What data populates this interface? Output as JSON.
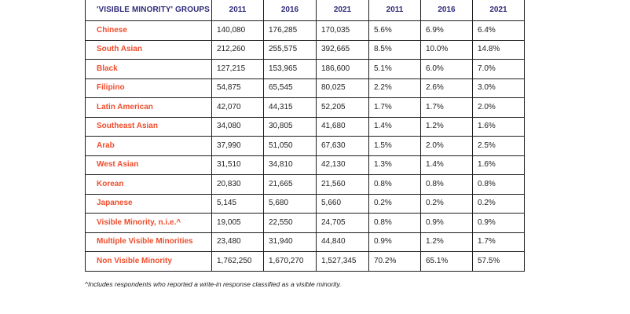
{
  "table": {
    "headers": [
      "'VISIBLE MINORITY' GROUPS",
      "2011",
      "2016",
      "2021",
      "2011",
      "2016",
      "2021"
    ],
    "rows": [
      {
        "group": "Chinese",
        "values": [
          "140,080",
          "176,285",
          "170,035",
          "5.6%",
          "6.9%",
          "6.4%"
        ]
      },
      {
        "group": "South Asian",
        "values": [
          "212,260",
          "255,575",
          "392,665",
          "8.5%",
          "10.0%",
          "14.8%"
        ]
      },
      {
        "group": "Black",
        "values": [
          "127,215",
          "153,965",
          "186,600",
          "5.1%",
          "6.0%",
          "7.0%"
        ]
      },
      {
        "group": "Filipino",
        "values": [
          "54,875",
          "65,545",
          "80,025",
          "2.2%",
          "2.6%",
          "3.0%"
        ]
      },
      {
        "group": "Latin American",
        "values": [
          "42,070",
          "44,315",
          "52,205",
          "1.7%",
          "1.7%",
          "2.0%"
        ]
      },
      {
        "group": "Southeast Asian",
        "values": [
          "34,080",
          "30,805",
          "41,680",
          "1.4%",
          "1.2%",
          "1.6%"
        ]
      },
      {
        "group": "Arab",
        "values": [
          "37,990",
          "51,050",
          "67,630",
          "1.5%",
          "2.0%",
          "2.5%"
        ]
      },
      {
        "group": "West Asian",
        "values": [
          "31,510",
          "34,810",
          "42,130",
          "1.3%",
          "1.4%",
          "1.6%"
        ]
      },
      {
        "group": "Korean",
        "values": [
          "20,830",
          "21,665",
          "21,560",
          "0.8%",
          "0.8%",
          "0.8%"
        ]
      },
      {
        "group": "Japanese",
        "values": [
          "5,145",
          "5,680",
          "5,660",
          "0.2%",
          "0.2%",
          "0.2%"
        ]
      },
      {
        "group": "Visible Minority, n.i.e.^",
        "values": [
          "19,005",
          "22,550",
          "24,705",
          "0.8%",
          "0.9%",
          "0.9%"
        ]
      },
      {
        "group": "Multiple Visible Minorities",
        "values": [
          "23,480",
          "31,940",
          "44,840",
          "0.9%",
          "1.2%",
          "1.7%"
        ]
      },
      {
        "group": "Non Visible Minority",
        "values": [
          "1,762,250",
          "1,670,270",
          "1,527,345",
          "70.2%",
          "65.1%",
          "57.5%"
        ]
      }
    ]
  },
  "footnote": "^Includes respondents who reported a write-in response classified as a visible minority.",
  "colors": {
    "header_text": "#2f2b7a",
    "group_text": "#ee4d2d",
    "border": "#1f1f1f"
  }
}
